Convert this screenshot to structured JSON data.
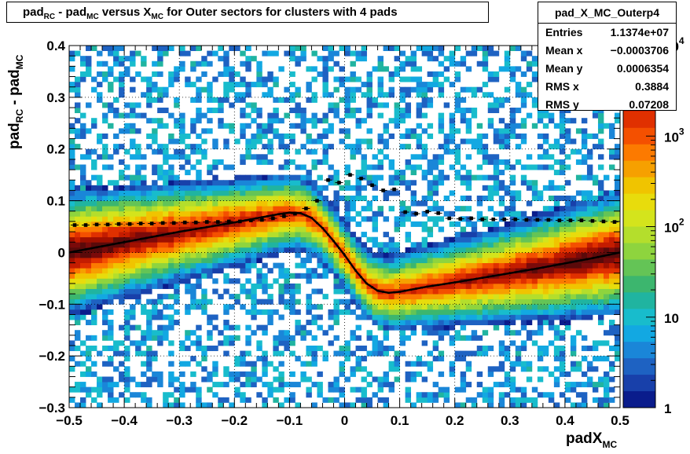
{
  "title": {
    "pre": "pad",
    "sub1": "RC",
    "mid1": " - pad",
    "sub2": "MC",
    "mid2": " versus X",
    "sub3": "MC",
    "post": " for Outer sectors for clusters with 4 pads"
  },
  "stats": {
    "name": "pad_X_MC_Outerp4",
    "rows": [
      {
        "key": "Entries",
        "value": "1.1374e+07"
      },
      {
        "key": "Mean x",
        "value": "−0.0003706"
      },
      {
        "key": "Mean y",
        "value": "0.0006354"
      },
      {
        "key": "RMS x",
        "value": "0.3884"
      },
      {
        "key": "RMS y",
        "value": "0.07208"
      }
    ]
  },
  "xlabel": {
    "main": "padX",
    "sub": "MC"
  },
  "ylabel": {
    "a": "pad",
    "sub1": "RC",
    "b": " - pad",
    "sub2": "MC"
  },
  "chart_data": {
    "type": "heatmap",
    "xlim": [
      -0.5,
      0.5
    ],
    "ylim": [
      -0.3,
      0.4
    ],
    "xticks": [
      -0.5,
      -0.4,
      -0.3,
      -0.2,
      -0.1,
      0,
      0.1,
      0.2,
      0.3,
      0.4,
      0.5
    ],
    "xtick_labels": [
      "−0.5",
      "−0.4",
      "−0.3",
      "−0.2",
      "−0.1",
      "0",
      "0.1",
      "0.2",
      "0.3",
      "0.4",
      "0.5"
    ],
    "yticks": [
      -0.3,
      -0.2,
      -0.1,
      0,
      0.1,
      0.2,
      0.3,
      0.4
    ],
    "ytick_labels": [
      "−0.3",
      "−0.2",
      "−0.1",
      "0",
      "0.1",
      "0.2",
      "0.3",
      "0.4"
    ],
    "grid": true,
    "log_z": true,
    "zlim": [
      1,
      10000
    ],
    "colorbar_labels": [
      {
        "value": 1,
        "label": "1"
      },
      {
        "value": 10,
        "label": "10"
      },
      {
        "value": 100,
        "label": "10^2"
      },
      {
        "value": 1000,
        "label": "10^3"
      },
      {
        "value": 10000,
        "label": "10^4"
      }
    ],
    "profile_points": {
      "x": [
        -0.49,
        -0.47,
        -0.45,
        -0.43,
        -0.41,
        -0.39,
        -0.37,
        -0.35,
        -0.33,
        -0.31,
        -0.29,
        -0.27,
        -0.25,
        -0.23,
        -0.21,
        -0.19,
        -0.17,
        -0.15,
        -0.13,
        -0.11,
        -0.09,
        -0.07,
        -0.05,
        -0.03,
        -0.01,
        0.01,
        0.03,
        0.05,
        0.07,
        0.09,
        0.11,
        0.13,
        0.15,
        0.17,
        0.19,
        0.21,
        0.23,
        0.25,
        0.27,
        0.29,
        0.31,
        0.33,
        0.35,
        0.37,
        0.39,
        0.41,
        0.43,
        0.45,
        0.47,
        0.49
      ],
      "y": [
        0.053,
        0.053,
        0.054,
        0.054,
        0.055,
        0.055,
        0.056,
        0.056,
        0.057,
        0.057,
        0.058,
        0.058,
        0.059,
        0.059,
        0.06,
        0.06,
        0.062,
        0.063,
        0.066,
        0.07,
        0.075,
        0.085,
        0.1,
        0.14,
        0.135,
        0.15,
        0.143,
        0.13,
        0.12,
        0.122,
        0.078,
        0.075,
        0.079,
        0.076,
        0.066,
        0.065,
        0.066,
        0.064,
        0.064,
        0.064,
        0.064,
        0.063,
        0.063,
        0.063,
        0.062,
        0.062,
        0.062,
        0.061,
        0.06,
        0.059
      ]
    },
    "fit_curve": {
      "x": [
        -0.5,
        -0.45,
        -0.4,
        -0.35,
        -0.3,
        -0.25,
        -0.2,
        -0.15,
        -0.12,
        -0.1,
        -0.08,
        -0.06,
        -0.04,
        -0.02,
        0,
        0.02,
        0.04,
        0.06,
        0.08,
        0.1,
        0.12,
        0.15,
        0.2,
        0.25,
        0.3,
        0.35,
        0.4,
        0.45,
        0.5
      ],
      "y": [
        0.0,
        0.01,
        0.02,
        0.03,
        0.04,
        0.049,
        0.058,
        0.068,
        0.074,
        0.077,
        0.076,
        0.067,
        0.047,
        0.022,
        -0.005,
        -0.035,
        -0.06,
        -0.074,
        -0.078,
        -0.076,
        -0.072,
        -0.066,
        -0.058,
        -0.049,
        -0.04,
        -0.031,
        -0.021,
        -0.011,
        0.0
      ]
    }
  }
}
